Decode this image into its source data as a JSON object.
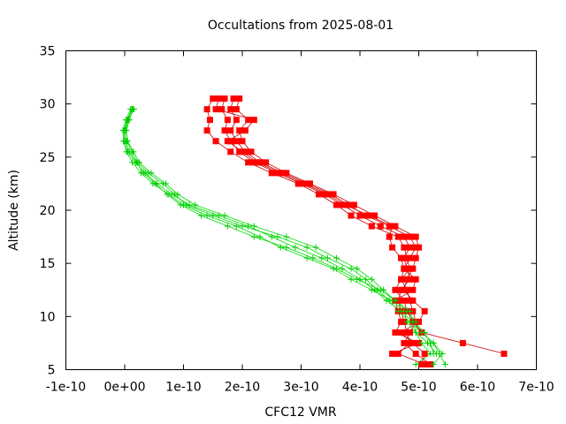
{
  "colors": {
    "frame": "#000000",
    "grid": "#c0c0c0",
    "red": "#ff0000",
    "green": "#00cc00",
    "red_line": "#cc0000",
    "green_line": "#00dd00"
  },
  "chart_data": {
    "type": "line",
    "title": "Occultations from 2025-08-01",
    "xlabel": "CFC12 VMR",
    "ylabel": "Altitude (km)",
    "xlim": [
      -1e-10,
      7e-10
    ],
    "ylim": [
      5,
      35
    ],
    "x_ticks": [
      -1e-10,
      0,
      1e-10,
      2e-10,
      3e-10,
      4e-10,
      5e-10,
      6e-10,
      7e-10
    ],
    "x_tick_labels": [
      "-1e-10",
      "0e+00",
      "1e-10",
      "2e-10",
      "3e-10",
      "4e-10",
      "5e-10",
      "6e-10",
      "7e-10"
    ],
    "y_ticks": [
      5,
      10,
      15,
      20,
      25,
      30,
      35
    ],
    "y_tick_labels": [
      "5",
      "10",
      "15",
      "20",
      "25",
      "30",
      "35"
    ],
    "grid": false,
    "legend": "none",
    "y": [
      29.5,
      28.5,
      27.5,
      26.5,
      25.5,
      24.5,
      23.5,
      22.5,
      21.5,
      20.5,
      19.5,
      18.5,
      17.5,
      16.5,
      15.5,
      14.5,
      13.5,
      12.5,
      11.5,
      10.5,
      9.5,
      8.5,
      7.5,
      6.5,
      5.5
    ],
    "series": [
      {
        "group": "red",
        "marker": "square",
        "points": [
          [
            1.5e-10,
            30.5
          ],
          [
            1.4e-10,
            29.5
          ],
          [
            1.45e-10,
            28.5
          ],
          [
            1.4e-10,
            27.5
          ],
          [
            1.55e-10,
            26.5
          ],
          [
            1.8e-10,
            25.5
          ],
          [
            2.1e-10,
            24.5
          ],
          [
            2.5e-10,
            23.5
          ],
          [
            2.95e-10,
            22.5
          ],
          [
            3.3e-10,
            21.5
          ],
          [
            3.6e-10,
            20.5
          ],
          [
            3.85e-10,
            19.5
          ],
          [
            4.2e-10,
            18.5
          ],
          [
            4.65e-10,
            17.5
          ],
          [
            4.75e-10,
            16.5
          ],
          [
            4.8e-10,
            15.5
          ],
          [
            4.85e-10,
            14.5
          ],
          [
            4.7e-10,
            13.5
          ],
          [
            4.6e-10,
            12.5
          ],
          [
            4.75e-10,
            11.5
          ],
          [
            4.8e-10,
            10.5
          ],
          [
            4.9e-10,
            9.5
          ],
          [
            5.05e-10,
            8.5
          ],
          [
            5.75e-10,
            7.5
          ],
          [
            6.45e-10,
            6.5
          ]
        ]
      },
      {
        "group": "red",
        "marker": "square",
        "points": [
          [
            1.7e-10,
            30.5
          ],
          [
            1.65e-10,
            29.5
          ],
          [
            1.75e-10,
            28.5
          ],
          [
            1.7e-10,
            27.5
          ],
          [
            1.8e-10,
            26.5
          ],
          [
            1.95e-10,
            25.5
          ],
          [
            2.2e-10,
            24.5
          ],
          [
            2.6e-10,
            23.5
          ],
          [
            3e-10,
            22.5
          ],
          [
            3.4e-10,
            21.5
          ],
          [
            3.7e-10,
            20.5
          ],
          [
            4e-10,
            19.5
          ],
          [
            4.35e-10,
            18.5
          ],
          [
            4.75e-10,
            17.5
          ],
          [
            4.85e-10,
            16.5
          ],
          [
            4.75e-10,
            15.5
          ],
          [
            4.8e-10,
            14.5
          ],
          [
            4.85e-10,
            13.5
          ],
          [
            4.7e-10,
            12.5
          ],
          [
            4.65e-10,
            11.5
          ],
          [
            4.7e-10,
            10.5
          ],
          [
            4.75e-10,
            9.5
          ],
          [
            4.8e-10,
            8.5
          ],
          [
            4.85e-10,
            7.5
          ],
          [
            4.65e-10,
            6.5
          ],
          [
            5.1e-10,
            5.5
          ]
        ]
      },
      {
        "group": "red",
        "marker": "square",
        "points": [
          [
            1.85e-10,
            30.5
          ],
          [
            1.8e-10,
            29.5
          ],
          [
            1.9e-10,
            28.5
          ],
          [
            1.8e-10,
            27.5
          ],
          [
            1.9e-10,
            26.5
          ],
          [
            2.05e-10,
            25.5
          ],
          [
            2.3e-10,
            24.5
          ],
          [
            2.7e-10,
            23.5
          ],
          [
            3.1e-10,
            22.5
          ],
          [
            3.5e-10,
            21.5
          ],
          [
            3.8e-10,
            20.5
          ],
          [
            4.1e-10,
            19.5
          ],
          [
            4.5e-10,
            18.5
          ],
          [
            4.85e-10,
            17.5
          ],
          [
            4.95e-10,
            16.5
          ],
          [
            4.85e-10,
            15.5
          ],
          [
            4.75e-10,
            14.5
          ],
          [
            4.7e-10,
            13.5
          ],
          [
            4.8e-10,
            12.5
          ],
          [
            4.85e-10,
            11.5
          ],
          [
            4.9e-10,
            10.5
          ],
          [
            4.95e-10,
            9.5
          ],
          [
            4.85e-10,
            8.5
          ],
          [
            4.75e-10,
            7.5
          ],
          [
            4.95e-10,
            6.5
          ],
          [
            5.2e-10,
            5.5
          ]
        ]
      },
      {
        "group": "red",
        "marker": "square",
        "points": [
          [
            1.95e-10,
            30.5
          ],
          [
            1.9e-10,
            29.5
          ],
          [
            2.1e-10,
            28.5
          ],
          [
            1.95e-10,
            27.5
          ],
          [
            2e-10,
            26.5
          ],
          [
            2.15e-10,
            25.5
          ],
          [
            2.4e-10,
            24.5
          ],
          [
            2.75e-10,
            23.5
          ],
          [
            3.15e-10,
            22.5
          ],
          [
            3.55e-10,
            21.5
          ],
          [
            3.9e-10,
            20.5
          ],
          [
            4.25e-10,
            19.5
          ],
          [
            4.6e-10,
            18.5
          ],
          [
            4.95e-10,
            17.5
          ],
          [
            5e-10,
            16.5
          ],
          [
            4.95e-10,
            15.5
          ],
          [
            4.9e-10,
            14.5
          ],
          [
            4.8e-10,
            13.5
          ],
          [
            4.75e-10,
            12.5
          ],
          [
            4.9e-10,
            11.5
          ],
          [
            5.1e-10,
            10.5
          ],
          [
            5e-10,
            9.5
          ],
          [
            4.7e-10,
            8.5
          ],
          [
            4.9e-10,
            7.5
          ],
          [
            5.1e-10,
            6.5
          ],
          [
            5.05e-10,
            5.5
          ]
        ]
      },
      {
        "group": "red",
        "marker": "square",
        "points": [
          [
            1.6e-10,
            30.5
          ],
          [
            1.55e-10,
            29.5
          ],
          [
            2.2e-10,
            28.5
          ],
          [
            2.05e-10,
            27.5
          ],
          [
            1.75e-10,
            26.5
          ],
          [
            2e-10,
            25.5
          ],
          [
            2.25e-10,
            24.5
          ],
          [
            2.65e-10,
            23.5
          ],
          [
            3.05e-10,
            22.5
          ],
          [
            3.45e-10,
            21.5
          ],
          [
            3.75e-10,
            20.5
          ],
          [
            4.15e-10,
            19.5
          ],
          [
            4.55e-10,
            18.5
          ],
          [
            4.5e-10,
            17.5
          ],
          [
            4.55e-10,
            16.5
          ],
          [
            4.7e-10,
            15.5
          ],
          [
            4.75e-10,
            14.5
          ],
          [
            4.95e-10,
            13.5
          ],
          [
            4.9e-10,
            12.5
          ],
          [
            4.6e-10,
            11.5
          ],
          [
            4.65e-10,
            10.5
          ],
          [
            4.7e-10,
            9.5
          ],
          [
            4.6e-10,
            8.5
          ],
          [
            5e-10,
            7.5
          ],
          [
            4.55e-10,
            6.5
          ]
        ]
      },
      {
        "group": "green",
        "marker": "plus",
        "points": [
          [
            1.4e-11,
            29.5
          ],
          [
            8e-12,
            28.5
          ],
          [
            3e-12,
            27.5
          ],
          [
            4e-12,
            26.5
          ],
          [
            1.2e-11,
            25.5
          ],
          [
            2.2e-11,
            24.5
          ],
          [
            4e-11,
            23.5
          ],
          [
            6.5e-11,
            22.5
          ],
          [
            8.5e-11,
            21.5
          ],
          [
            1.05e-10,
            20.5
          ],
          [
            1.5e-10,
            19.5
          ],
          [
            2e-10,
            18.5
          ],
          [
            2.6e-10,
            17.5
          ],
          [
            3.1e-10,
            16.5
          ],
          [
            3.45e-10,
            15.5
          ],
          [
            3.85e-10,
            14.5
          ],
          [
            4.1e-10,
            13.5
          ],
          [
            4.3e-10,
            12.5
          ],
          [
            4.5e-10,
            11.5
          ],
          [
            4.65e-10,
            10.5
          ],
          [
            4.85e-10,
            9.5
          ],
          [
            5.05e-10,
            8.5
          ],
          [
            5.25e-10,
            7.5
          ],
          [
            5.35e-10,
            6.5
          ],
          [
            5.45e-10,
            5.5
          ]
        ]
      },
      {
        "group": "green",
        "marker": "plus",
        "points": [
          [
            1.2e-11,
            29.5
          ],
          [
            4e-12,
            28.5
          ],
          [
            -2e-12,
            27.5
          ],
          [
            0,
            26.5
          ],
          [
            5e-12,
            25.5
          ],
          [
            1.8e-11,
            24.5
          ],
          [
            3.5e-11,
            23.5
          ],
          [
            5.5e-11,
            22.5
          ],
          [
            8e-11,
            21.5
          ],
          [
            1.1e-10,
            20.5
          ],
          [
            1.6e-10,
            19.5
          ],
          [
            2.1e-10,
            18.5
          ],
          [
            2.5e-10,
            17.5
          ],
          [
            2.9e-10,
            16.5
          ],
          [
            3.35e-10,
            15.5
          ],
          [
            3.7e-10,
            14.5
          ],
          [
            4e-10,
            13.5
          ],
          [
            4.25e-10,
            12.5
          ],
          [
            4.45e-10,
            11.5
          ],
          [
            4.7e-10,
            10.5
          ],
          [
            4.9e-10,
            9.5
          ],
          [
            5.1e-10,
            8.5
          ],
          [
            5.2e-10,
            7.5
          ],
          [
            5.25e-10,
            6.5
          ]
        ]
      },
      {
        "group": "green",
        "marker": "plus",
        "points": [
          [
            1e-11,
            29.5
          ],
          [
            2e-12,
            28.5
          ],
          [
            -3e-12,
            27.5
          ],
          [
            -2e-12,
            26.5
          ],
          [
            3e-12,
            25.5
          ],
          [
            1.3e-11,
            24.5
          ],
          [
            2.8e-11,
            23.5
          ],
          [
            4.8e-11,
            22.5
          ],
          [
            7.5e-11,
            21.5
          ],
          [
            1e-10,
            20.5
          ],
          [
            1.4e-10,
            19.5
          ],
          [
            1.9e-10,
            18.5
          ],
          [
            2.3e-10,
            17.5
          ],
          [
            2.65e-10,
            16.5
          ],
          [
            3.1e-10,
            15.5
          ],
          [
            3.55e-10,
            14.5
          ],
          [
            3.85e-10,
            13.5
          ],
          [
            4.2e-10,
            12.5
          ],
          [
            4.55e-10,
            11.5
          ],
          [
            4.75e-10,
            10.5
          ],
          [
            4.8e-10,
            9.5
          ],
          [
            4.95e-10,
            8.5
          ],
          [
            5.15e-10,
            7.5
          ],
          [
            5.3e-10,
            6.5
          ]
        ]
      },
      {
        "group": "green",
        "marker": "plus",
        "points": [
          [
            1.6e-11,
            29.5
          ],
          [
            6e-12,
            28.5
          ],
          [
            2e-12,
            27.5
          ],
          [
            5e-12,
            26.5
          ],
          [
            1.5e-11,
            25.5
          ],
          [
            2.5e-11,
            24.5
          ],
          [
            4.5e-11,
            23.5
          ],
          [
            7e-11,
            22.5
          ],
          [
            9e-11,
            21.5
          ],
          [
            1.2e-10,
            20.5
          ],
          [
            1.7e-10,
            19.5
          ],
          [
            2.2e-10,
            18.5
          ],
          [
            2.75e-10,
            17.5
          ],
          [
            3.25e-10,
            16.5
          ],
          [
            3.6e-10,
            15.5
          ],
          [
            3.95e-10,
            14.5
          ],
          [
            4.2e-10,
            13.5
          ],
          [
            4.4e-10,
            12.5
          ],
          [
            4.6e-10,
            11.5
          ],
          [
            4.8e-10,
            10.5
          ],
          [
            4.95e-10,
            9.5
          ],
          [
            5.05e-10,
            8.5
          ],
          [
            5.25e-10,
            7.5
          ],
          [
            5.4e-10,
            6.5
          ],
          [
            5.25e-10,
            5.5
          ]
        ]
      },
      {
        "group": "green",
        "marker": "plus",
        "points": [
          [
            1.3e-11,
            29.5
          ],
          [
            5e-12,
            28.5
          ],
          [
            0,
            27.5
          ],
          [
            2e-12,
            26.5
          ],
          [
            8e-12,
            25.5
          ],
          [
            2e-11,
            24.5
          ],
          [
            3.2e-11,
            23.5
          ],
          [
            5.2e-11,
            22.5
          ],
          [
            7.2e-11,
            21.5
          ],
          [
            9.5e-11,
            20.5
          ],
          [
            1.3e-10,
            19.5
          ],
          [
            1.75e-10,
            18.5
          ],
          [
            2.2e-10,
            17.5
          ],
          [
            2.75e-10,
            16.5
          ],
          [
            3.2e-10,
            15.5
          ],
          [
            3.6e-10,
            14.5
          ],
          [
            3.95e-10,
            13.5
          ],
          [
            4.35e-10,
            12.5
          ],
          [
            4.6e-10,
            11.5
          ],
          [
            4.85e-10,
            10.5
          ],
          [
            4.9e-10,
            9.5
          ],
          [
            4.95e-10,
            8.5
          ],
          [
            5.05e-10,
            7.5
          ],
          [
            5.2e-10,
            6.5
          ],
          [
            4.95e-10,
            5.5
          ]
        ]
      }
    ]
  }
}
